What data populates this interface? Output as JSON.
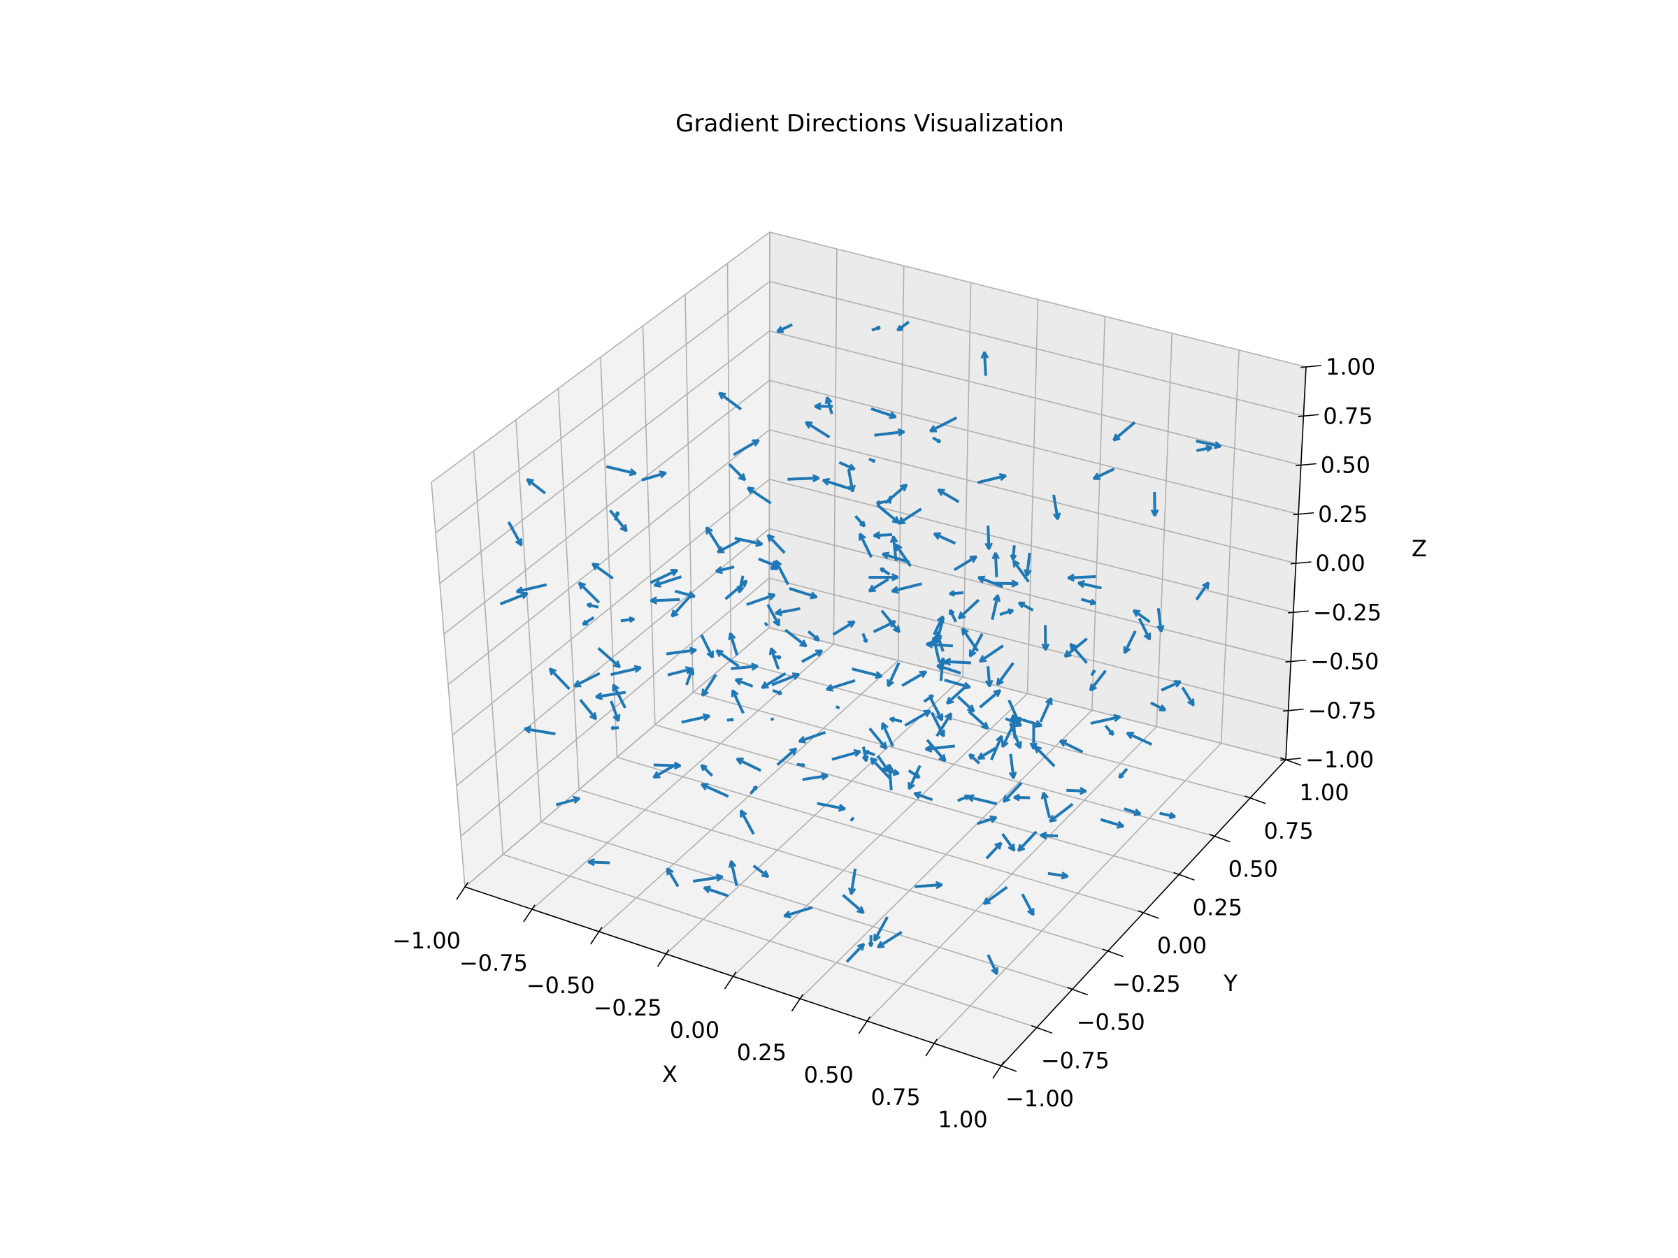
{
  "chart_data": {
    "type": "quiver3d",
    "title": "Gradient Directions Visualization",
    "xlabel": "X",
    "ylabel": "Y",
    "zlabel": "Z",
    "xlim": [
      -1.0,
      1.0
    ],
    "ylim": [
      -1.0,
      1.0
    ],
    "zlim": [
      -1.0,
      1.0
    ],
    "xticks": [
      "−1.00",
      "−0.75",
      "−0.50",
      "−0.25",
      "0.00",
      "0.25",
      "0.50",
      "0.75",
      "1.00"
    ],
    "yticks": [
      "−1.00",
      "−0.75",
      "−0.50",
      "−0.25",
      "0.00",
      "0.25",
      "0.50",
      "0.75",
      "1.00"
    ],
    "zticks": [
      "−1.00",
      "−0.75",
      "−0.50",
      "−0.25",
      "0.00",
      "0.25",
      "0.50",
      "0.75",
      "1.00"
    ],
    "grid": true,
    "arrow_color": "#1f77b4",
    "arrow_length": 0.1,
    "num_arrows": 250,
    "random_seed": 7
  }
}
